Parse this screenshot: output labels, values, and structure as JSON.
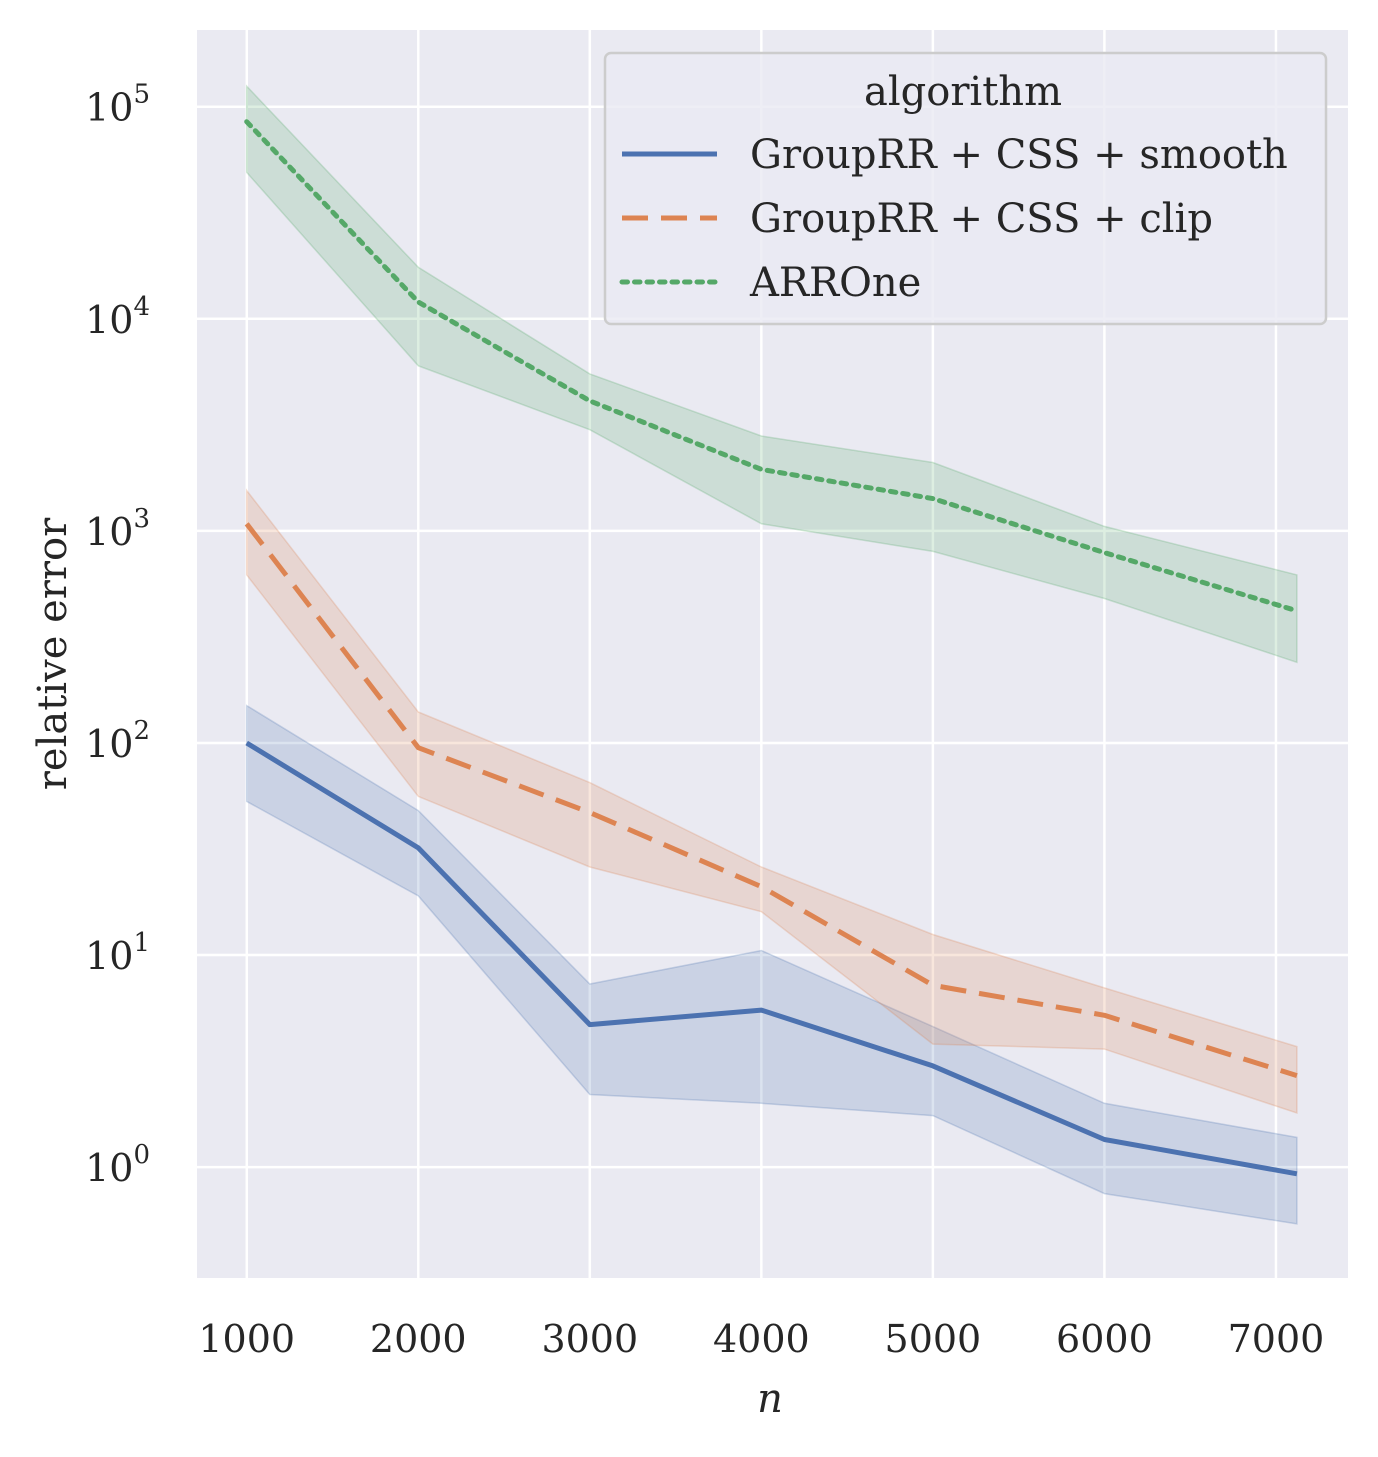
{
  "chart_data": {
    "type": "line",
    "title": "",
    "xlabel": "n",
    "ylabel": "relative error",
    "yscale": "log",
    "x": [
      1000,
      2000,
      3000,
      4000,
      5000,
      6000,
      7122
    ],
    "x_ticks": [
      1000,
      2000,
      3000,
      4000,
      5000,
      6000,
      7000
    ],
    "x_tick_labels": [
      "1000",
      "2000",
      "3000",
      "4000",
      "5000",
      "6000",
      "7000"
    ],
    "xlim": [
      710,
      7420
    ],
    "y_ticks": [
      {
        "value": 1,
        "base": "10",
        "exp": "0"
      },
      {
        "value": 10,
        "base": "10",
        "exp": "1"
      },
      {
        "value": 100,
        "base": "10",
        "exp": "2"
      },
      {
        "value": 1000,
        "base": "10",
        "exp": "3"
      },
      {
        "value": 10000,
        "base": "10",
        "exp": "4"
      },
      {
        "value": 100000,
        "base": "10",
        "exp": "5"
      }
    ],
    "ylim": [
      0.3,
      230000
    ],
    "grid": true,
    "legend": {
      "title": "algorithm",
      "position": "top-right"
    },
    "series": [
      {
        "name": "GroupRR + CSS + smooth",
        "color": "#4c72b0",
        "dash": "solid",
        "values": [
          100,
          32,
          4.7,
          5.5,
          3.0,
          1.35,
          0.93
        ],
        "lower": [
          53,
          19,
          2.2,
          2.0,
          1.75,
          0.75,
          0.54
        ],
        "upper": [
          150,
          48,
          7.3,
          10.5,
          4.6,
          2.0,
          1.38
        ]
      },
      {
        "name": "GroupRR + CSS + clip",
        "color": "#dd8452",
        "dash": "dashed",
        "values": [
          1080,
          95,
          47,
          21,
          7.2,
          5.2,
          2.7
        ],
        "lower": [
          620,
          56,
          26,
          16,
          3.8,
          3.6,
          1.8
        ],
        "upper": [
          1550,
          140,
          65,
          26,
          12.5,
          7.0,
          3.7
        ]
      },
      {
        "name": "ARROne",
        "color": "#55a868",
        "dash": "dotted",
        "values": [
          85000,
          12000,
          4100,
          1950,
          1420,
          790,
          420
        ],
        "lower": [
          49000,
          6000,
          3000,
          1080,
          800,
          480,
          240
        ],
        "upper": [
          125000,
          17500,
          5500,
          2800,
          2100,
          1050,
          620
        ]
      }
    ]
  }
}
